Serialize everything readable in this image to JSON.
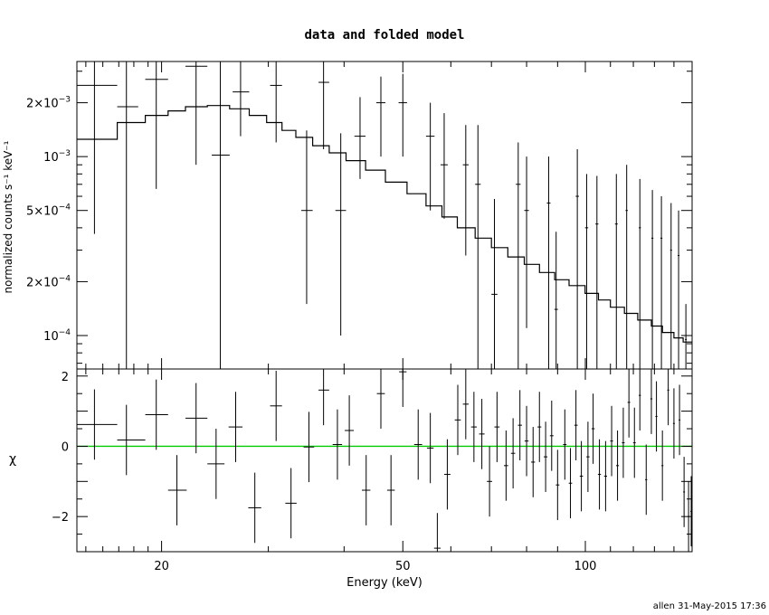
{
  "title": "data and folded model",
  "footer": "allen 31-May-2015 17:36",
  "xlabel": "Energy (keV)",
  "colors": {
    "axes": "#000000",
    "data": "#000000",
    "model": "#000000",
    "zero_line": "#00cc00"
  },
  "chart_data": [
    {
      "type": "scatter",
      "panel": "top",
      "title": "data and folded model",
      "xlabel": "Energy (keV)",
      "ylabel": "normalized counts s⁻¹ keV⁻¹",
      "x_scale": "log",
      "y_scale": "log",
      "xlim": [
        14.5,
        150
      ],
      "ylim": [
        6.5e-05,
        0.0034
      ],
      "x_ticks": [
        {
          "value": 20,
          "label": "20"
        },
        {
          "value": 50,
          "label": "50"
        },
        {
          "value": 100,
          "label": "100"
        }
      ],
      "y_ticks": [
        {
          "value": 0.0001,
          "mant": "10",
          "exp": "−4"
        },
        {
          "value": 0.0002,
          "mant": "2×10",
          "exp": "−4"
        },
        {
          "value": 0.0005,
          "mant": "5×10",
          "exp": "−4"
        },
        {
          "value": 0.001,
          "mant": "10",
          "exp": "−3"
        },
        {
          "value": 0.002,
          "mant": "2×10",
          "exp": "−3"
        }
      ],
      "series": [
        {
          "kind": "data",
          "points": [
            {
              "x": 15.5,
              "xlo": 14.5,
              "xhi": 16.9,
              "y": 0.0025,
              "ylo": 0.00037,
              "yhi": 0.0034
            },
            {
              "x": 17.5,
              "xlo": 16.9,
              "xhi": 18.3,
              "y": 0.0019,
              "ylo": 6e-05,
              "yhi": 0.0034
            },
            {
              "x": 19.6,
              "xlo": 18.8,
              "xhi": 20.5,
              "y": 0.0027,
              "ylo": 0.00066,
              "yhi": 0.0034
            },
            {
              "x": 22.8,
              "xlo": 21.9,
              "xhi": 23.8,
              "y": 0.0032,
              "ylo": 0.0009,
              "yhi": 0.0034
            },
            {
              "x": 25.0,
              "xlo": 24.2,
              "xhi": 25.9,
              "y": 0.00102,
              "ylo": 6e-05,
              "yhi": 0.0034
            },
            {
              "x": 27.0,
              "xlo": 26.2,
              "xhi": 27.9,
              "y": 0.0023,
              "ylo": 0.0013,
              "yhi": 0.0034
            },
            {
              "x": 30.9,
              "xlo": 30.2,
              "xhi": 31.6,
              "y": 0.0025,
              "ylo": 0.0012,
              "yhi": 0.0034
            },
            {
              "x": 34.7,
              "xlo": 34.0,
              "xhi": 35.5,
              "y": 0.0005,
              "ylo": 0.00015,
              "yhi": 0.0014
            },
            {
              "x": 37.0,
              "xlo": 36.3,
              "xhi": 37.8,
              "y": 0.0026,
              "ylo": 0.0011,
              "yhi": 0.0034
            },
            {
              "x": 39.5,
              "xlo": 38.7,
              "xhi": 40.3,
              "y": 0.0005,
              "ylo": 0.0001,
              "yhi": 0.00135
            },
            {
              "x": 42.5,
              "xlo": 41.6,
              "xhi": 43.4,
              "y": 0.0013,
              "ylo": 0.00075,
              "yhi": 0.00215
            },
            {
              "x": 46.0,
              "xlo": 45.2,
              "xhi": 46.8,
              "y": 0.002,
              "ylo": 0.001,
              "yhi": 0.0028
            },
            {
              "x": 50.0,
              "xlo": 49.2,
              "xhi": 50.8,
              "y": 0.002,
              "ylo": 0.001,
              "yhi": 0.0029
            },
            {
              "x": 55.5,
              "xlo": 54.6,
              "xhi": 56.4,
              "y": 0.0013,
              "ylo": 0.0005,
              "yhi": 0.002
            },
            {
              "x": 58.5,
              "xlo": 57.7,
              "xhi": 59.3,
              "y": 0.0009,
              "ylo": 0.00045,
              "yhi": 0.00175
            },
            {
              "x": 63.5,
              "xlo": 62.8,
              "xhi": 64.2,
              "y": 0.0009,
              "ylo": 0.00028,
              "yhi": 0.0015
            },
            {
              "x": 66.5,
              "xlo": 65.8,
              "xhi": 67.2,
              "y": 0.0007,
              "ylo": 6e-05,
              "yhi": 0.0015
            },
            {
              "x": 70.8,
              "xlo": 70.0,
              "xhi": 71.6,
              "y": 0.00017,
              "ylo": 6e-05,
              "yhi": 0.00058
            },
            {
              "x": 77.5,
              "xlo": 76.8,
              "xhi": 78.2,
              "y": 0.0007,
              "ylo": 6e-05,
              "yhi": 0.0012
            },
            {
              "x": 80.0,
              "xlo": 79.3,
              "xhi": 80.7,
              "y": 0.0005,
              "ylo": 0.00011,
              "yhi": 0.001
            },
            {
              "x": 87.0,
              "xlo": 86.4,
              "xhi": 87.6,
              "y": 0.00055,
              "ylo": 6e-05,
              "yhi": 0.001
            },
            {
              "x": 89.5,
              "xlo": 88.9,
              "xhi": 90.1,
              "y": 0.00014,
              "ylo": 6e-05,
              "yhi": 0.00038
            },
            {
              "x": 97.0,
              "xlo": 96.4,
              "xhi": 97.6,
              "y": 0.0006,
              "ylo": 6e-05,
              "yhi": 0.0011
            },
            {
              "x": 100.5,
              "xlo": 99.9,
              "xhi": 101.1,
              "y": 0.0004,
              "ylo": 6e-05,
              "yhi": 0.0008
            },
            {
              "x": 104.5,
              "xlo": 103.9,
              "xhi": 105.1,
              "y": 0.00042,
              "ylo": 6e-05,
              "yhi": 0.00078
            },
            {
              "x": 112.5,
              "xlo": 111.9,
              "xhi": 113.1,
              "y": 0.00042,
              "ylo": 6e-05,
              "yhi": 0.0008
            },
            {
              "x": 117.0,
              "xlo": 116.5,
              "xhi": 117.5,
              "y": 0.0005,
              "ylo": 6e-05,
              "yhi": 0.0009
            },
            {
              "x": 123.0,
              "xlo": 122.5,
              "xhi": 123.5,
              "y": 0.0004,
              "ylo": 6e-05,
              "yhi": 0.00075
            },
            {
              "x": 129.0,
              "xlo": 128.5,
              "xhi": 129.5,
              "y": 0.00035,
              "ylo": 6e-05,
              "yhi": 0.00065
            },
            {
              "x": 133.5,
              "xlo": 133.0,
              "xhi": 134.0,
              "y": 0.00035,
              "ylo": 6e-05,
              "yhi": 0.0006
            },
            {
              "x": 138.5,
              "xlo": 138.0,
              "xhi": 139.0,
              "y": 0.0003,
              "ylo": 6e-05,
              "yhi": 0.00055
            },
            {
              "x": 142.5,
              "xlo": 142.0,
              "xhi": 143.0,
              "y": 0.00028,
              "ylo": 6e-05,
              "yhi": 0.0005
            },
            {
              "x": 146.5,
              "xlo": 146.0,
              "xhi": 147.0,
              "y": 9.5e-05,
              "ylo": 6e-05,
              "yhi": 0.00015
            }
          ]
        },
        {
          "kind": "model",
          "style": "step",
          "edges": [
            14.5,
            16.9,
            18.8,
            20.5,
            21.9,
            23.8,
            25.9,
            27.9,
            29.8,
            31.6,
            33.3,
            35.5,
            37.8,
            40.3,
            43.4,
            46.8,
            50.8,
            54.6,
            58.0,
            61.5,
            65.8,
            70.0,
            74.5,
            79.3,
            84.0,
            89.0,
            94.0,
            99.9,
            105.1,
            110.0,
            116.0,
            122.0,
            128.5,
            134.0,
            140.0,
            145.0,
            150.0
          ],
          "values": [
            0.00125,
            0.00155,
            0.0017,
            0.0018,
            0.0019,
            0.00193,
            0.00185,
            0.0017,
            0.00155,
            0.0014,
            0.00128,
            0.00115,
            0.00105,
            0.00095,
            0.00084,
            0.00072,
            0.00062,
            0.00053,
            0.00046,
            0.0004,
            0.00035,
            0.00031,
            0.000275,
            0.00025,
            0.000225,
            0.000205,
            0.00019,
            0.000172,
            0.000158,
            0.000144,
            0.000133,
            0.000122,
            0.000113,
            0.000104,
            9.7e-05,
            9.2e-05
          ]
        }
      ]
    },
    {
      "type": "scatter",
      "panel": "bottom",
      "xlabel": "Energy (keV)",
      "ylabel": "χ",
      "x_scale": "log",
      "y_scale": "linear",
      "xlim": [
        14.5,
        150
      ],
      "ylim": [
        -3.0,
        2.2
      ],
      "x_ticks": [
        {
          "value": 20,
          "label": "20"
        },
        {
          "value": 50,
          "label": "50"
        },
        {
          "value": 100,
          "label": "100"
        }
      ],
      "y_ticks": [
        {
          "value": 2,
          "label": "2"
        },
        {
          "value": 0,
          "label": "0"
        },
        {
          "value": -2,
          "label": "−2"
        }
      ],
      "zero_line": 0,
      "series": [
        {
          "kind": "residuals",
          "points": [
            {
              "x": 15.5,
              "xlo": 14.5,
              "xhi": 16.9,
              "y": 0.62
            },
            {
              "x": 17.5,
              "xlo": 16.9,
              "xhi": 18.8,
              "y": 0.18
            },
            {
              "x": 19.6,
              "xlo": 18.8,
              "xhi": 20.5,
              "y": 0.9
            },
            {
              "x": 21.2,
              "xlo": 20.5,
              "xhi": 22.0,
              "y": -1.25
            },
            {
              "x": 22.8,
              "xlo": 21.9,
              "xhi": 23.8,
              "y": 0.8
            },
            {
              "x": 24.6,
              "xlo": 23.8,
              "xhi": 25.4,
              "y": -0.5
            },
            {
              "x": 26.5,
              "xlo": 25.8,
              "xhi": 27.2,
              "y": 0.55
            },
            {
              "x": 28.5,
              "xlo": 27.8,
              "xhi": 29.2,
              "y": -1.75
            },
            {
              "x": 30.9,
              "xlo": 30.2,
              "xhi": 31.6,
              "y": 1.15
            },
            {
              "x": 32.7,
              "xlo": 32.0,
              "xhi": 33.4,
              "y": -1.62
            },
            {
              "x": 35.0,
              "xlo": 34.3,
              "xhi": 35.7,
              "y": -0.02
            },
            {
              "x": 37.0,
              "xlo": 36.3,
              "xhi": 37.8,
              "y": 1.6
            },
            {
              "x": 39.0,
              "xlo": 38.3,
              "xhi": 39.7,
              "y": 0.05
            },
            {
              "x": 40.8,
              "xlo": 40.1,
              "xhi": 41.5,
              "y": 0.45
            },
            {
              "x": 43.5,
              "xlo": 42.8,
              "xhi": 44.2,
              "y": -1.25
            },
            {
              "x": 46.0,
              "xlo": 45.3,
              "xhi": 46.7,
              "y": 1.5
            },
            {
              "x": 47.8,
              "xlo": 47.1,
              "xhi": 48.5,
              "y": -1.25
            },
            {
              "x": 50.0,
              "xlo": 49.3,
              "xhi": 50.7,
              "y": 2.12
            },
            {
              "x": 53.0,
              "xlo": 52.2,
              "xhi": 53.8,
              "y": 0.05
            },
            {
              "x": 55.5,
              "xlo": 54.8,
              "xhi": 56.2,
              "y": -0.05
            },
            {
              "x": 57.0,
              "xlo": 56.3,
              "xhi": 57.7,
              "y": -2.9
            },
            {
              "x": 59.2,
              "xlo": 58.5,
              "xhi": 59.9,
              "y": -0.8
            },
            {
              "x": 61.6,
              "xlo": 60.9,
              "xhi": 62.3,
              "y": 0.75
            },
            {
              "x": 63.5,
              "xlo": 62.8,
              "xhi": 64.2,
              "y": 1.2
            },
            {
              "x": 65.5,
              "xlo": 64.8,
              "xhi": 66.2,
              "y": 0.55
            },
            {
              "x": 67.5,
              "xlo": 66.8,
              "xhi": 68.2,
              "y": 0.35
            },
            {
              "x": 69.5,
              "xlo": 68.8,
              "xhi": 70.2,
              "y": -1.0
            },
            {
              "x": 71.5,
              "xlo": 70.8,
              "xhi": 72.2,
              "y": 0.55
            },
            {
              "x": 74.0,
              "xlo": 73.4,
              "xhi": 74.6,
              "y": -0.55
            },
            {
              "x": 76.0,
              "xlo": 75.4,
              "xhi": 76.6,
              "y": -0.2
            },
            {
              "x": 78.0,
              "xlo": 77.4,
              "xhi": 78.6,
              "y": 0.6
            },
            {
              "x": 80.0,
              "xlo": 79.4,
              "xhi": 80.6,
              "y": 0.15
            },
            {
              "x": 82.0,
              "xlo": 81.4,
              "xhi": 82.6,
              "y": -0.45
            },
            {
              "x": 84.0,
              "xlo": 83.4,
              "xhi": 84.6,
              "y": 0.55
            },
            {
              "x": 86.0,
              "xlo": 85.4,
              "xhi": 86.6,
              "y": -0.3
            },
            {
              "x": 88.0,
              "xlo": 87.4,
              "xhi": 88.6,
              "y": 0.3
            },
            {
              "x": 90.0,
              "xlo": 89.4,
              "xhi": 90.6,
              "y": -1.1
            },
            {
              "x": 92.5,
              "xlo": 91.9,
              "xhi": 93.1,
              "y": 0.05
            },
            {
              "x": 94.5,
              "xlo": 93.9,
              "xhi": 95.1,
              "y": -1.05
            },
            {
              "x": 96.5,
              "xlo": 95.9,
              "xhi": 97.1,
              "y": 0.6
            },
            {
              "x": 98.5,
              "xlo": 97.9,
              "xhi": 99.1,
              "y": -0.85
            },
            {
              "x": 101.0,
              "xlo": 100.4,
              "xhi": 101.6,
              "y": -0.3
            },
            {
              "x": 103.0,
              "xlo": 102.4,
              "xhi": 103.6,
              "y": 0.5
            },
            {
              "x": 105.5,
              "xlo": 104.9,
              "xhi": 106.1,
              "y": -0.8
            },
            {
              "x": 108.0,
              "xlo": 107.4,
              "xhi": 108.6,
              "y": -0.85
            },
            {
              "x": 110.5,
              "xlo": 109.9,
              "xhi": 111.1,
              "y": 0.15
            },
            {
              "x": 113.0,
              "xlo": 112.4,
              "xhi": 113.6,
              "y": -0.55
            },
            {
              "x": 115.5,
              "xlo": 114.9,
              "xhi": 116.1,
              "y": 0.1
            },
            {
              "x": 118.0,
              "xlo": 117.4,
              "xhi": 118.6,
              "y": 1.25
            },
            {
              "x": 120.5,
              "xlo": 119.9,
              "xhi": 121.1,
              "y": 0.1
            },
            {
              "x": 123.0,
              "xlo": 122.5,
              "xhi": 123.5,
              "y": 1.45
            },
            {
              "x": 126.0,
              "xlo": 125.5,
              "xhi": 126.5,
              "y": -0.95
            },
            {
              "x": 128.5,
              "xlo": 128.0,
              "xhi": 129.0,
              "y": 1.35
            },
            {
              "x": 131.0,
              "xlo": 130.5,
              "xhi": 131.5,
              "y": 0.85
            },
            {
              "x": 134.0,
              "xlo": 133.5,
              "xhi": 134.5,
              "y": -0.55
            },
            {
              "x": 137.0,
              "xlo": 136.5,
              "xhi": 137.5,
              "y": 1.6
            },
            {
              "x": 140.0,
              "xlo": 139.5,
              "xhi": 140.5,
              "y": 0.65
            },
            {
              "x": 143.0,
              "xlo": 142.5,
              "xhi": 143.5,
              "y": 0.75
            },
            {
              "x": 145.5,
              "xlo": 145.0,
              "xhi": 146.0,
              "y": -1.3
            },
            {
              "x": 148.0,
              "xlo": 147.5,
              "xhi": 148.5,
              "y": -2.0
            },
            {
              "x": 149.5,
              "xlo": 149.0,
              "xhi": 150.0,
              "y": -1.85
            }
          ]
        }
      ]
    }
  ]
}
